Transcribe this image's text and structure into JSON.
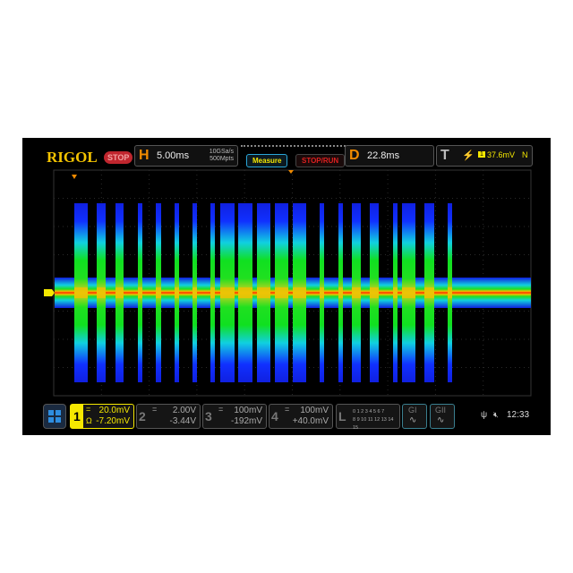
{
  "header": {
    "logo": "RIGOL",
    "run_state": "STOP",
    "horizontal": {
      "label": "H",
      "timebase": "5.00ms",
      "sample_rate": "10GSa/s",
      "memory_depth": "500Mpts"
    },
    "measure_label": "Measure",
    "stop_run_label": "STOP/RUN",
    "delay": {
      "label": "D",
      "value": "22.8ms"
    },
    "trigger": {
      "label": "T",
      "slope_icon": "rising-edge-icon",
      "source": "1",
      "level": "37.6mV",
      "mode": "N"
    }
  },
  "channels": [
    {
      "num": "1",
      "scale": "20.0mV",
      "offset": "-7.20mV",
      "coupling": "=",
      "impedance": "Ω",
      "active": true,
      "color": "#f5e800"
    },
    {
      "num": "2",
      "scale": "2.00V",
      "offset": "-3.44V",
      "coupling": "="
    },
    {
      "num": "3",
      "scale": "100mV",
      "offset": "-192mV",
      "coupling": "="
    },
    {
      "num": "4",
      "scale": "100mV",
      "offset": "+40.0mV",
      "coupling": "="
    }
  ],
  "logic": {
    "label": "L",
    "row1": "0 1 2 3  4 5 6 7",
    "row2": "8 9 10 11 12 13 14 15"
  },
  "generators": [
    {
      "label": "GI"
    },
    {
      "label": "GII"
    }
  ],
  "status": {
    "usb_icon": "usb-icon",
    "sound_icon": "speaker-muted-icon",
    "time": "12:33"
  },
  "markers": {
    "ch1_level": "1",
    "trigger_position": "T"
  },
  "colors": {
    "ch1": "#f5e800",
    "accent": "#f08a00"
  }
}
